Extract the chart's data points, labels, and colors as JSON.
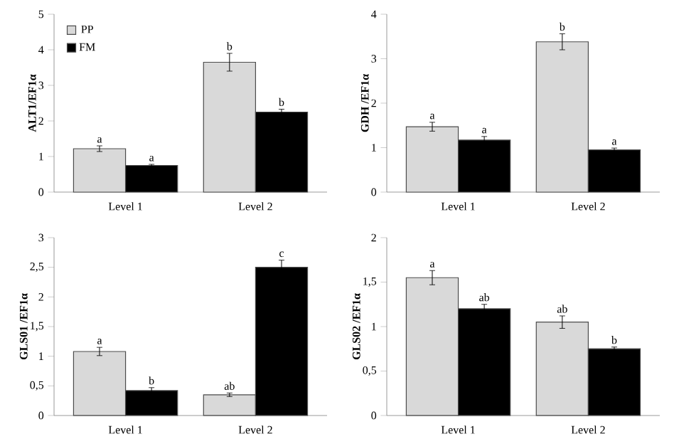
{
  "chart_data": [
    {
      "type": "bar",
      "ylabel": "ALT1/EF1α",
      "categories": [
        "Level 1",
        "Level 2"
      ],
      "ylim": [
        0,
        5
      ],
      "yticks": [
        0,
        1,
        2,
        3,
        4,
        5
      ],
      "legend": "top left",
      "series": [
        {
          "name": "PP",
          "color": "#d9d9d9",
          "values": [
            1.22,
            3.65
          ],
          "errors": [
            0.08,
            0.25
          ],
          "value_labels": [
            "a",
            "b"
          ]
        },
        {
          "name": "FM",
          "color": "#000000",
          "values": [
            0.75,
            2.25
          ],
          "errors": [
            0.03,
            0.08
          ],
          "value_labels": [
            "a",
            "b"
          ]
        }
      ]
    },
    {
      "type": "bar",
      "ylabel": "GDH /EF1α",
      "categories": [
        "Level 1",
        "Level 2"
      ],
      "ylim": [
        0,
        4
      ],
      "yticks": [
        0,
        1,
        2,
        3,
        4
      ],
      "series": [
        {
          "color": "#d9d9d9",
          "values": [
            1.47,
            3.38
          ],
          "errors": [
            0.1,
            0.18
          ],
          "value_labels": [
            "a",
            "b"
          ]
        },
        {
          "color": "#000000",
          "values": [
            1.17,
            0.95
          ],
          "errors": [
            0.08,
            0.04
          ],
          "value_labels": [
            "a",
            "a"
          ]
        }
      ]
    },
    {
      "type": "bar",
      "ylabel": "GLS01 /EF1α",
      "categories": [
        "Level 1",
        "Level 2"
      ],
      "ylim": [
        0,
        3
      ],
      "yticks": [
        0,
        {
          "value": 0.5,
          "label": "0,5"
        },
        1,
        {
          "value": 1.5,
          "label": "1,5"
        },
        2,
        {
          "value": 2.5,
          "label": "2,5"
        },
        3
      ],
      "series": [
        {
          "color": "#d9d9d9",
          "values": [
            1.08,
            0.35
          ],
          "errors": [
            0.07,
            0.03
          ],
          "value_labels": [
            "a",
            "ab"
          ]
        },
        {
          "color": "#000000",
          "values": [
            0.42,
            2.5
          ],
          "errors": [
            0.05,
            0.12
          ],
          "value_labels": [
            "b",
            "c"
          ]
        }
      ]
    },
    {
      "type": "bar",
      "ylabel": "GLS02 /EF1α",
      "categories": [
        "Level 1",
        "Level 2"
      ],
      "ylim": [
        0,
        2
      ],
      "yticks": [
        0,
        {
          "value": 0.5,
          "label": "0,5"
        },
        1,
        {
          "value": 1.5,
          "label": "1,5"
        },
        2
      ],
      "series": [
        {
          "color": "#d9d9d9",
          "values": [
            1.55,
            1.05
          ],
          "errors": [
            0.08,
            0.07
          ],
          "value_labels": [
            "a",
            "ab"
          ]
        },
        {
          "color": "#000000",
          "values": [
            1.2,
            0.75
          ],
          "errors": [
            0.05,
            0.02
          ],
          "value_labels": [
            "ab",
            "b"
          ]
        }
      ]
    }
  ]
}
